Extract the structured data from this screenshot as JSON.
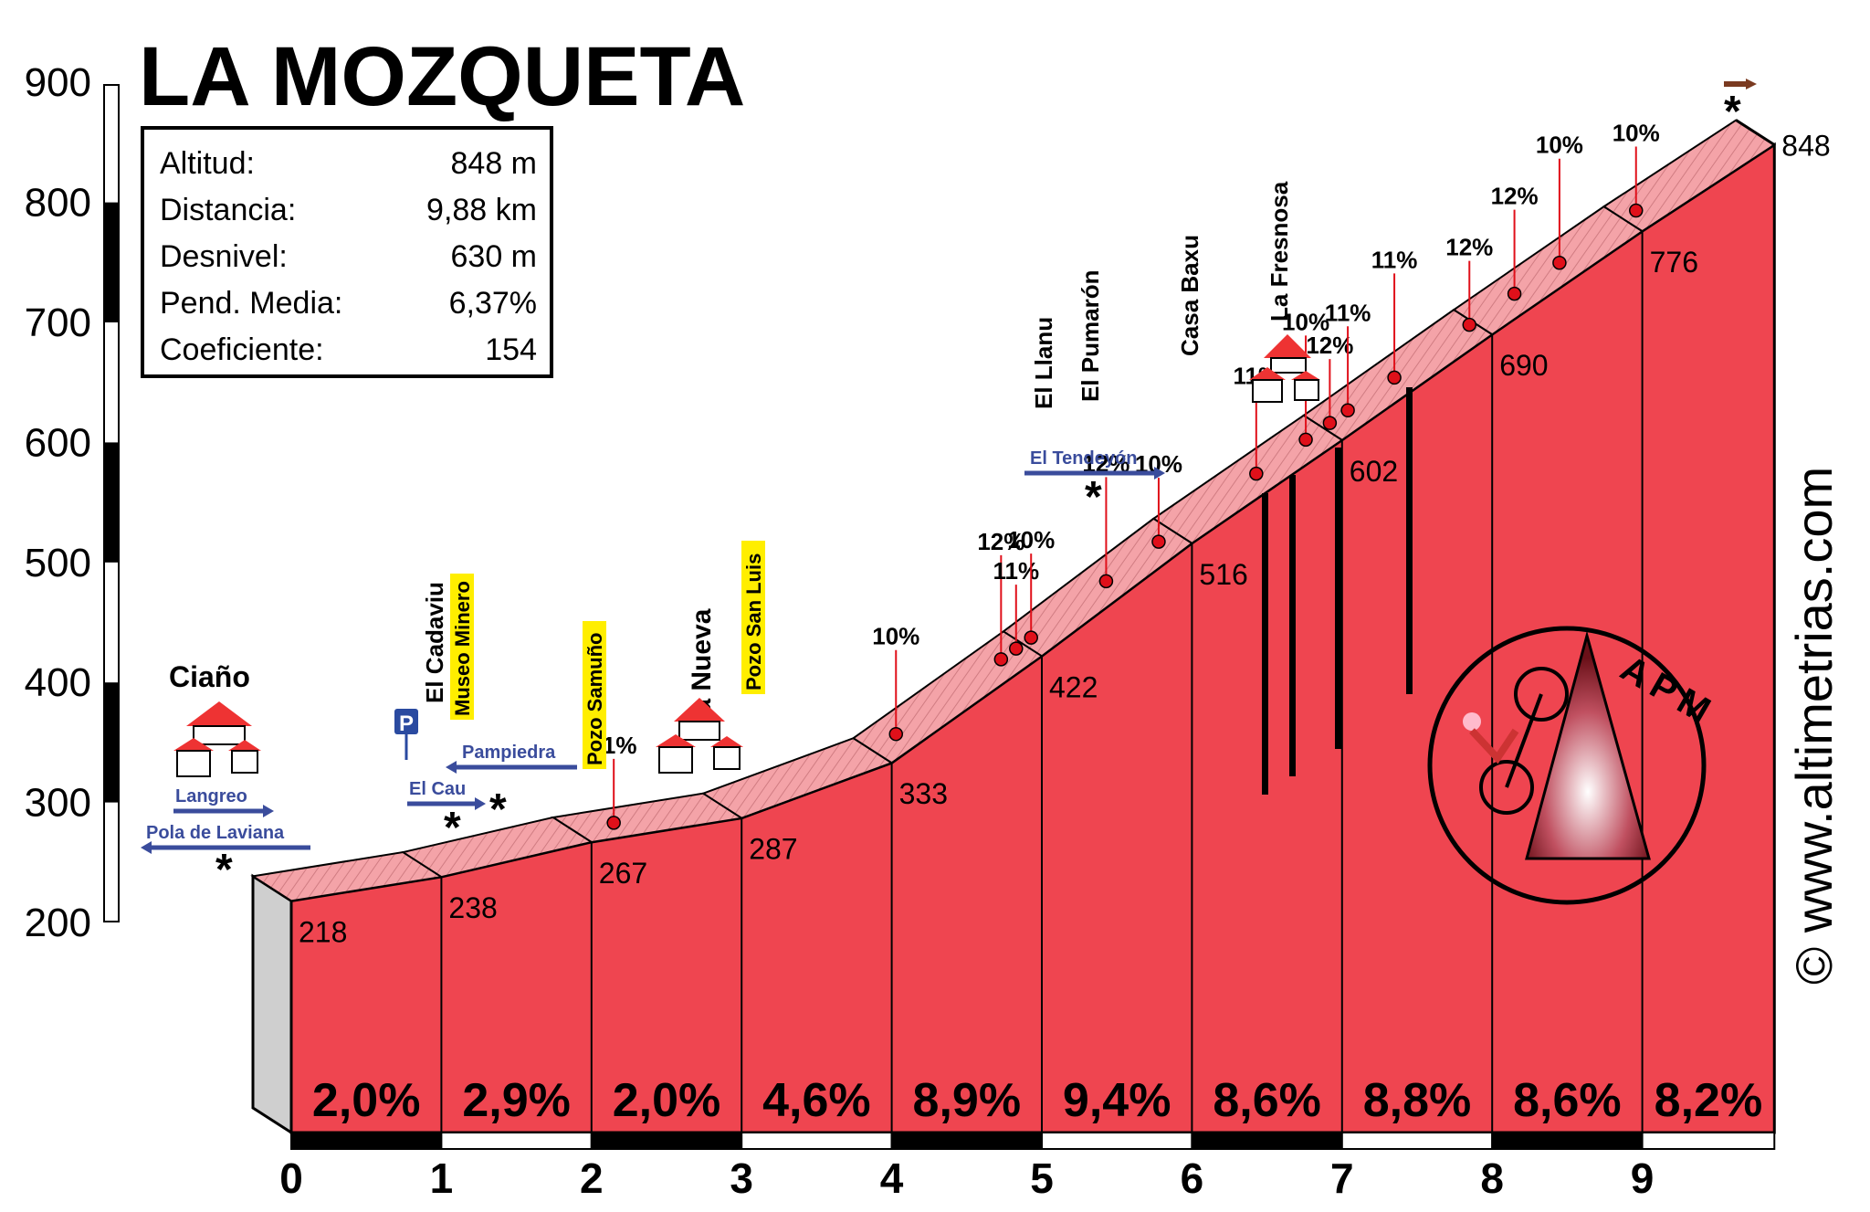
{
  "chart_data": {
    "type": "area",
    "title": "LA MOZQUETA",
    "info": [
      {
        "label": "Altitud:",
        "value": "848 m"
      },
      {
        "label": "Distancia:",
        "value": "9,88 km"
      },
      {
        "label": "Desnivel:",
        "value": "630 m"
      },
      {
        "label": "Pend. Media:",
        "value": "6,37%"
      },
      {
        "label": "Coeficiente:",
        "value": "154"
      }
    ],
    "x_ticks": [
      "0",
      "1",
      "2",
      "3",
      "4",
      "5",
      "6",
      "7",
      "8",
      "9"
    ],
    "y_ticks": [
      "200",
      "300",
      "400",
      "500",
      "600",
      "700",
      "800",
      "900"
    ],
    "xlim": [
      0,
      9.88
    ],
    "ylim": [
      200,
      900
    ],
    "kms": [
      {
        "km": 0,
        "start": 218,
        "label": "218",
        "grade": "2,0%"
      },
      {
        "km": 1,
        "start": 238,
        "label": "238",
        "grade": "2,9%"
      },
      {
        "km": 2,
        "start": 267,
        "label": "267",
        "grade": "2,0%"
      },
      {
        "km": 3,
        "start": 287,
        "label": "287",
        "grade": "4,6%"
      },
      {
        "km": 4,
        "start": 333,
        "label": "333",
        "grade": "8,9%"
      },
      {
        "km": 5,
        "start": 422,
        "label": "422",
        "grade": "9,4%"
      },
      {
        "km": 6,
        "start": 516,
        "label": "516",
        "grade": "8,6%"
      },
      {
        "km": 7,
        "start": 602,
        "label": "602",
        "grade": "8,8%"
      },
      {
        "km": 8,
        "start": 690,
        "label": "690",
        "grade": "8,6%"
      },
      {
        "km": 9,
        "start": 776,
        "label": "776",
        "grade": "8,2%"
      }
    ],
    "summit": {
      "km": 9.88,
      "alt": 848,
      "label": "848"
    },
    "places": {
      "ciano": "Ciaño",
      "la_nueva": "La Nueva",
      "el_cadaviu": "El Cadaviu",
      "museo_minero": "Museo Minero",
      "pozo_samuno": "Pozo Samuño",
      "pozo_san_luis": "Pozo San Luis",
      "el_llanu": "El Llanu",
      "el_pumaron": "El Pumarón",
      "casa_baxu": "Casa Baxu",
      "la_fresnosa": "La Fresnosa",
      "langreo": "Langreo",
      "pola_de_laviana": "Pola de Laviana",
      "pampiedra": "Pampiedra",
      "el_cau": "El Cau",
      "el_tendeyon": "El Tendeyón"
    },
    "parking_letter": "P",
    "ramps": [
      {
        "text": "11%",
        "km": 2.27
      },
      {
        "text": "10%",
        "km": 4.15
      },
      {
        "text": "12%",
        "km": 4.85
      },
      {
        "text": "11%",
        "km": 4.95
      },
      {
        "text": "10%",
        "km": 5.05
      },
      {
        "text": "12%",
        "km": 5.55
      },
      {
        "text": "10%",
        "km": 5.9
      },
      {
        "text": "11%",
        "km": 6.55
      },
      {
        "text": "10%",
        "km": 6.88
      },
      {
        "text": "12%",
        "km": 7.04
      },
      {
        "text": "11%",
        "km": 7.16
      },
      {
        "text": "11%",
        "km": 7.47
      },
      {
        "text": "12%",
        "km": 7.97
      },
      {
        "text": "12%",
        "km": 8.27
      },
      {
        "text": "10%",
        "km": 8.57
      },
      {
        "text": "10%",
        "km": 9.08
      }
    ],
    "logo_text": "APM",
    "watermark": "© www.altimetrias.com"
  },
  "colors": {
    "fill": "#ef4550",
    "ribbon": "#f4a3a8",
    "ribbon_dark": "#b83a40",
    "dot": "#e0101a",
    "arrow": "#3a4c9c",
    "black": "#000000",
    "yellow": "#ffee00",
    "grey": "#cfcfcf"
  }
}
